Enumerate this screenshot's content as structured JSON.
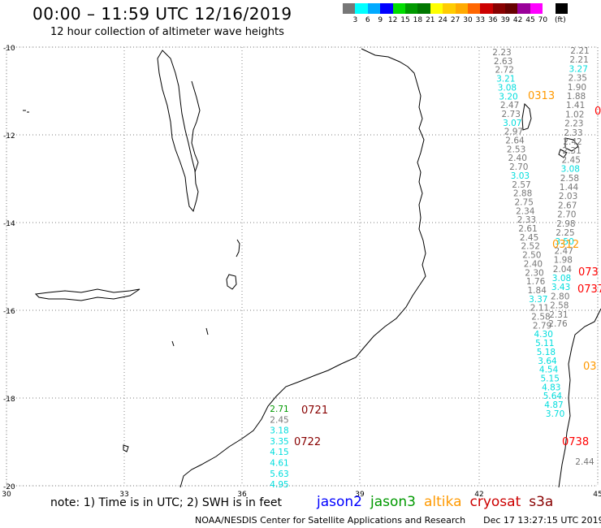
{
  "header": {
    "title": "00:00 – 11:59 UTC 12/16/2019",
    "subtitle": "12 hour collection of altimeter wave heights"
  },
  "legend": {
    "colors": [
      "#777777",
      "#00ffff",
      "#00aaff",
      "#0000ff",
      "#00dd00",
      "#009900",
      "#007700",
      "#ffff00",
      "#ffcc00",
      "#ffaa00",
      "#ff6600",
      "#cc0000",
      "#880000",
      "#660000",
      "#990099",
      "#ff00ff",
      "#ffffff",
      "#000000"
    ],
    "labels": [
      "3",
      "6",
      "9",
      "12",
      "15",
      "18",
      "21",
      "24",
      "27",
      "30",
      "33",
      "36",
      "39",
      "42",
      "45",
      "70",
      "(ft)"
    ]
  },
  "axes": {
    "y_labels": [
      "-10",
      "-12",
      "-14",
      "-16",
      "-18",
      "-20"
    ],
    "x_labels": [
      "30",
      "33",
      "36",
      "39",
      "42",
      "45"
    ]
  },
  "pass_labels": [
    {
      "text": "0313",
      "color": "#ff9900"
    },
    {
      "text": "0",
      "color": "#ff0000"
    },
    {
      "text": "0312",
      "color": "#ff9900"
    },
    {
      "text": "073",
      "color": "#ff0000"
    },
    {
      "text": "0737",
      "color": "#ff0000"
    },
    {
      "text": "03",
      "color": "#ff9900"
    },
    {
      "text": "0721",
      "color": "#880000"
    },
    {
      "text": "0722",
      "color": "#880000"
    },
    {
      "text": "0738",
      "color": "#ff0000"
    }
  ],
  "tracks": [
    {
      "name": "track-a",
      "values": [
        {
          "v": "2.23",
          "c": "#777777"
        },
        {
          "v": "2.63",
          "c": "#777777"
        },
        {
          "v": "2.72",
          "c": "#777777"
        },
        {
          "v": "3.21",
          "c": "#00dddd"
        },
        {
          "v": "3.08",
          "c": "#00dddd"
        },
        {
          "v": "3.20",
          "c": "#00dddd"
        },
        {
          "v": "2.47",
          "c": "#777777"
        },
        {
          "v": "2.73",
          "c": "#777777"
        },
        {
          "v": "3.07",
          "c": "#00dddd"
        },
        {
          "v": "2.97",
          "c": "#777777"
        },
        {
          "v": "2.64",
          "c": "#777777"
        },
        {
          "v": "2.53",
          "c": "#777777"
        },
        {
          "v": "2.40",
          "c": "#777777"
        },
        {
          "v": "2.70",
          "c": "#777777"
        },
        {
          "v": "3.03",
          "c": "#00dddd"
        },
        {
          "v": "2.57",
          "c": "#777777"
        },
        {
          "v": "2.88",
          "c": "#777777"
        },
        {
          "v": "2.75",
          "c": "#777777"
        },
        {
          "v": "2.34",
          "c": "#777777"
        },
        {
          "v": "2.33",
          "c": "#777777"
        },
        {
          "v": "2.61",
          "c": "#777777"
        },
        {
          "v": "2.45",
          "c": "#777777"
        },
        {
          "v": "2.52",
          "c": "#777777"
        },
        {
          "v": "2.50",
          "c": "#777777"
        },
        {
          "v": "2.40",
          "c": "#777777"
        },
        {
          "v": "2.30",
          "c": "#777777"
        },
        {
          "v": "1.76",
          "c": "#777777"
        },
        {
          "v": "1.84",
          "c": "#777777"
        },
        {
          "v": "3.37",
          "c": "#00dddd"
        },
        {
          "v": "2.11",
          "c": "#777777"
        },
        {
          "v": "2.58",
          "c": "#777777"
        },
        {
          "v": "2.79",
          "c": "#777777"
        },
        {
          "v": "4.30",
          "c": "#00dddd"
        },
        {
          "v": "5.11",
          "c": "#00dddd"
        },
        {
          "v": "5.18",
          "c": "#00dddd"
        },
        {
          "v": "3.64",
          "c": "#00dddd"
        },
        {
          "v": "4.54",
          "c": "#00dddd"
        },
        {
          "v": "5.15",
          "c": "#00dddd"
        },
        {
          "v": "4.83",
          "c": "#00dddd"
        },
        {
          "v": "5.64",
          "c": "#00dddd"
        },
        {
          "v": "4.87",
          "c": "#00dddd"
        },
        {
          "v": "3.70",
          "c": "#00dddd"
        }
      ]
    },
    {
      "name": "track-b",
      "values": [
        {
          "v": "2.21",
          "c": "#777777"
        },
        {
          "v": "2.21",
          "c": "#777777"
        },
        {
          "v": "3.27",
          "c": "#00dddd"
        },
        {
          "v": "2.35",
          "c": "#777777"
        },
        {
          "v": "1.90",
          "c": "#777777"
        },
        {
          "v": "1.88",
          "c": "#777777"
        },
        {
          "v": "1.41",
          "c": "#777777"
        },
        {
          "v": "1.02",
          "c": "#777777"
        },
        {
          "v": "2.23",
          "c": "#777777"
        },
        {
          "v": "2.33",
          "c": "#777777"
        },
        {
          "v": "2.42",
          "c": "#777777"
        },
        {
          "v": "2.31",
          "c": "#777777"
        },
        {
          "v": "2.45",
          "c": "#777777"
        },
        {
          "v": "3.08",
          "c": "#00dddd"
        },
        {
          "v": "2.58",
          "c": "#777777"
        },
        {
          "v": "1.44",
          "c": "#777777"
        },
        {
          "v": "2.03",
          "c": "#777777"
        },
        {
          "v": "2.67",
          "c": "#777777"
        },
        {
          "v": "2.70",
          "c": "#777777"
        },
        {
          "v": "2.98",
          "c": "#777777"
        },
        {
          "v": "2.25",
          "c": "#777777"
        },
        {
          "v": "3.50",
          "c": "#00dddd"
        },
        {
          "v": "2.47",
          "c": "#777777"
        },
        {
          "v": "1.98",
          "c": "#777777"
        },
        {
          "v": "2.04",
          "c": "#777777"
        },
        {
          "v": "3.08",
          "c": "#00dddd"
        },
        {
          "v": "3.43",
          "c": "#00dddd"
        },
        {
          "v": "2.80",
          "c": "#777777"
        },
        {
          "v": "2.58",
          "c": "#777777"
        },
        {
          "v": "2.31",
          "c": "#777777"
        },
        {
          "v": "2.76",
          "c": "#777777"
        }
      ]
    },
    {
      "name": "track-c",
      "values": [
        {
          "v": "2.71",
          "c": "#009900"
        },
        {
          "v": "2.45",
          "c": "#777777"
        },
        {
          "v": "3.18",
          "c": "#00dddd"
        },
        {
          "v": "3.35",
          "c": "#00dddd"
        },
        {
          "v": "4.15",
          "c": "#00dddd"
        },
        {
          "v": "4.61",
          "c": "#00dddd"
        },
        {
          "v": "5.63",
          "c": "#00dddd"
        },
        {
          "v": "4.95",
          "c": "#00dddd"
        }
      ]
    },
    {
      "name": "track-d",
      "values": [
        {
          "v": "2.44",
          "c": "#777777"
        }
      ]
    }
  ],
  "note": "note: 1) Time is in UTC; 2) SWH is in feet",
  "satellites": [
    {
      "name": "jason2",
      "color": "#0000ff"
    },
    {
      "name": "jason3",
      "color": "#009900"
    },
    {
      "name": "altika",
      "color": "#ff9900"
    },
    {
      "name": "cryosat",
      "color": "#cc0000"
    },
    {
      "name": "s3a",
      "color": "#880000"
    }
  ],
  "footer": {
    "credit": "NOAA/NESDIS Center for Satellite Applications and Research",
    "timestamp": "Dec 17 13:27:15 UTC 2019"
  }
}
